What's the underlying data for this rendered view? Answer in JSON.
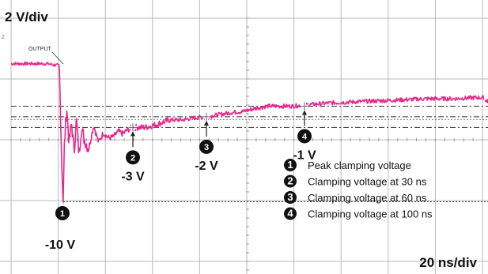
{
  "chart_data": {
    "type": "line",
    "title": "",
    "scale": {
      "vertical": "2 V/div",
      "horizontal": "20 ns/div"
    },
    "grid": true,
    "x_unit": "ns",
    "y_unit": "V",
    "series": [
      {
        "name": "OUTPUT",
        "color": "#e8288c",
        "x": [
          -10,
          -5,
          0,
          0.5,
          1,
          1.6,
          2,
          3,
          4,
          5,
          6,
          7,
          8,
          9,
          10,
          12,
          14,
          16,
          18,
          20,
          22,
          24,
          26,
          28,
          30,
          35,
          40,
          45,
          50,
          55,
          60,
          65,
          70,
          75,
          80,
          85,
          90,
          95,
          100,
          110,
          120,
          130,
          140,
          150,
          160,
          170,
          180
        ],
        "y": [
          3.0,
          3.0,
          2.8,
          -1.6,
          -6.5,
          -10.0,
          -5.0,
          -1.0,
          -4.5,
          -2.5,
          -5.3,
          -2.2,
          -5.6,
          -3.0,
          -4.0,
          -5.0,
          -2.8,
          -4.4,
          -3.5,
          -4.0,
          -3.9,
          -3.4,
          -3.6,
          -3.2,
          -3.0,
          -3.0,
          -2.7,
          -2.3,
          -2.3,
          -2.1,
          -2.0,
          -1.8,
          -1.6,
          -1.5,
          -1.2,
          -1.0,
          -1.0,
          -1.0,
          -0.9,
          -0.7,
          -0.6,
          -0.5,
          -0.4,
          -0.3,
          -0.3,
          -0.2,
          -0.2
        ]
      }
    ],
    "annotations": [
      {
        "num": "1",
        "x": 1.6,
        "y": -10.0,
        "value_label": "-10 V",
        "legend": "Peak clamping voltage"
      },
      {
        "num": "2",
        "x": 30,
        "y": -3.0,
        "value_label": "-3 V",
        "legend": "Clamping voltage at 30 ns"
      },
      {
        "num": "3",
        "x": 60,
        "y": -2.0,
        "value_label": "-2 V",
        "legend": "Clamping voltage at 60 ns"
      },
      {
        "num": "4",
        "x": 100,
        "y": -1.0,
        "value_label": "-1 V",
        "legend": "Clamping voltage at 100 ns"
      }
    ],
    "reference_levels": [
      -10.0,
      -3.0,
      -2.0,
      -1.0
    ],
    "trace_label": "OUTPUT",
    "channel_marker": "2"
  }
}
